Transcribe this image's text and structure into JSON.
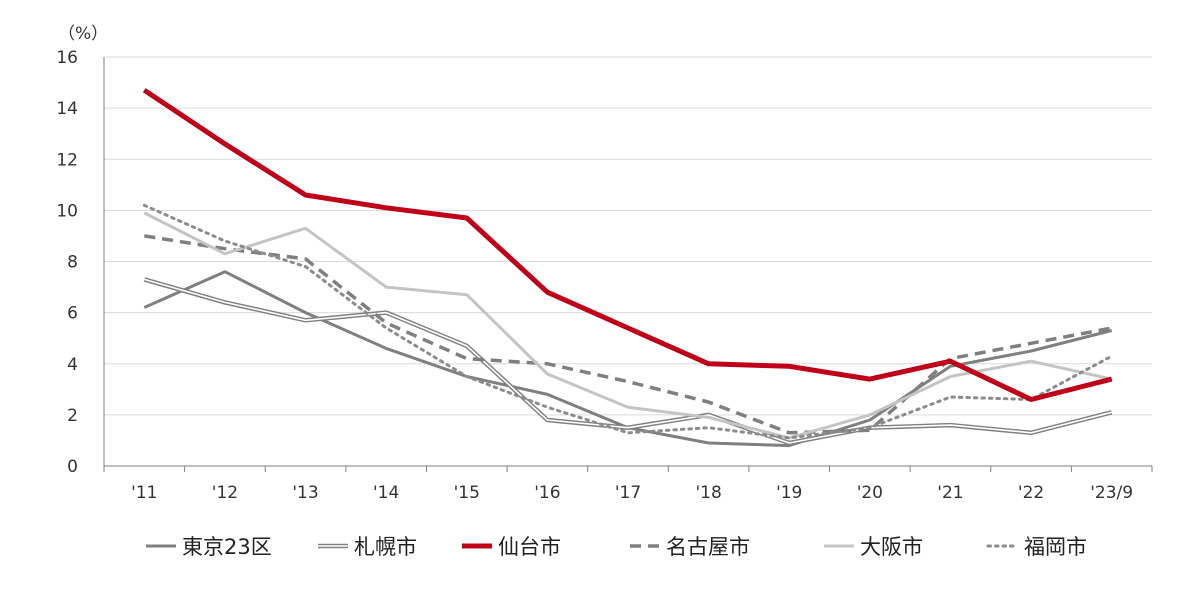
{
  "chart_data": {
    "type": "line",
    "ylabel": "（%）",
    "xlabel": "",
    "ylim": [
      0,
      16
    ],
    "yticks": [
      "0",
      "2",
      "4",
      "6",
      "8",
      "10",
      "12",
      "14",
      "16"
    ],
    "categories": [
      "'11",
      "'12",
      "'13",
      "'14",
      "'15",
      "'16",
      "'17",
      "'18",
      "'19",
      "'20",
      "'21",
      "'22",
      "'23/9"
    ],
    "grid": true,
    "legend_position": "bottom",
    "series": [
      {
        "name": "東京23区",
        "color": "#7f7f7f",
        "style": "solid",
        "values": [
          6.2,
          7.6,
          6.0,
          4.6,
          3.5,
          2.8,
          1.5,
          0.9,
          0.8,
          1.8,
          3.9,
          4.5,
          5.3
        ]
      },
      {
        "name": "札幌市",
        "color": "#808080",
        "style": "double",
        "values": [
          7.3,
          6.4,
          5.7,
          6.0,
          4.7,
          1.8,
          1.5,
          2.0,
          0.9,
          1.5,
          1.6,
          1.3,
          2.1
        ]
      },
      {
        "name": "仙台市",
        "color": "#c00018",
        "style": "thick",
        "values": [
          14.7,
          12.6,
          10.6,
          10.1,
          9.7,
          6.8,
          5.4,
          4.0,
          3.9,
          3.4,
          4.1,
          2.6,
          3.4
        ]
      },
      {
        "name": "名古屋市",
        "color": "#7f7f7f",
        "style": "dashed",
        "values": [
          9.0,
          8.5,
          8.1,
          5.6,
          4.2,
          4.0,
          3.3,
          2.5,
          1.3,
          1.4,
          4.2,
          4.8,
          5.4
        ]
      },
      {
        "name": "大阪市",
        "color": "#c4c4c4",
        "style": "solid",
        "values": [
          9.9,
          8.3,
          9.3,
          7.0,
          6.7,
          3.6,
          2.3,
          1.9,
          1.1,
          2.0,
          3.5,
          4.1,
          3.4
        ]
      },
      {
        "name": "福岡市",
        "color": "#8c8c8c",
        "style": "dotted",
        "values": [
          10.2,
          8.8,
          7.8,
          5.4,
          3.5,
          2.3,
          1.3,
          1.5,
          1.1,
          1.5,
          2.7,
          2.6,
          4.3
        ]
      }
    ]
  }
}
